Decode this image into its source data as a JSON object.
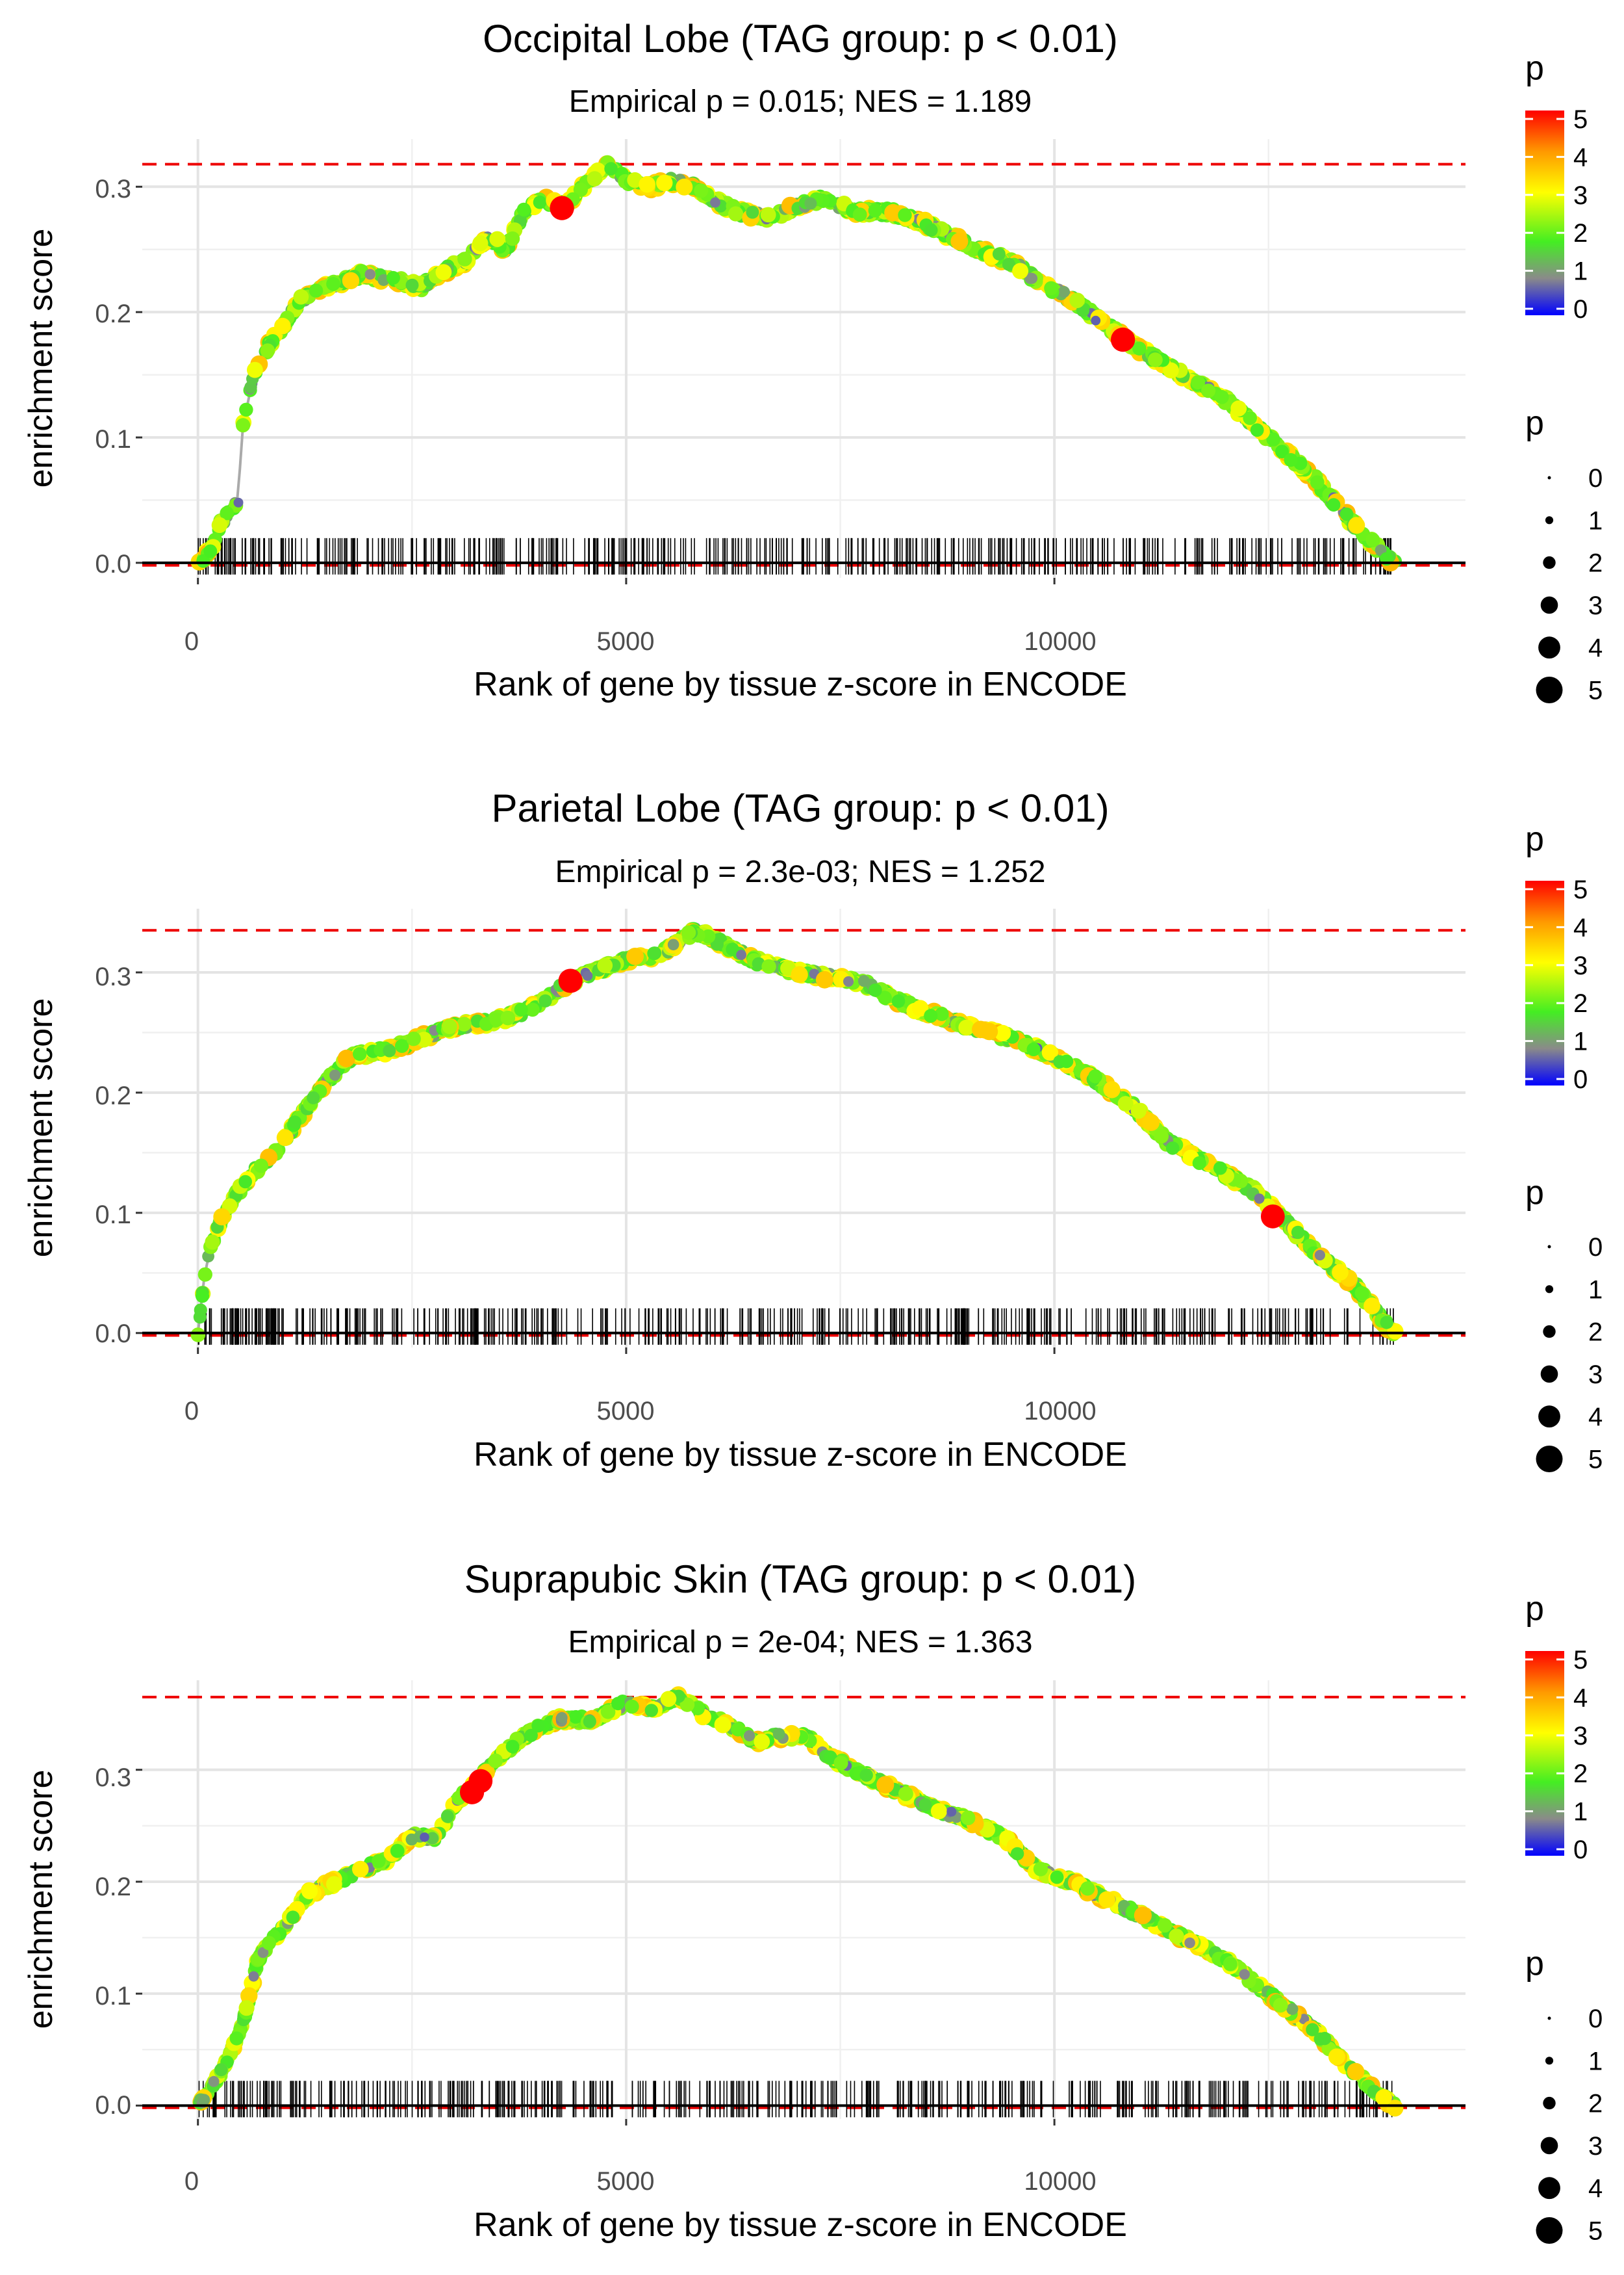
{
  "legend": {
    "color_title": "p",
    "color_ticks": [
      "0",
      "1",
      "2",
      "3",
      "4",
      "5"
    ],
    "size_title": "p",
    "size_labels": [
      "0",
      "1",
      "2",
      "3",
      "4",
      "5"
    ],
    "colors": {
      "low": "#0000ff",
      "mid_gray": "#8a8a8a",
      "green": "#44ee22",
      "yellow": "#ffff00",
      "orange": "#ff9900",
      "high": "#ff0000",
      "dashed": "#ee0000",
      "line": "#aaaaaa"
    }
  },
  "chart_data": [
    {
      "type": "line",
      "title": "Occipital Lobe (TAG group: p < 0.01)",
      "subtitle": "Empirical p = 0.015; NES = 1.189",
      "xlabel": "Rank of gene by tissue z-score in ENCODE",
      "ylabel": "enrichment score",
      "xlim": [
        -650,
        14800
      ],
      "ylim": [
        -0.012,
        0.338
      ],
      "xticks": [
        0,
        5000,
        10000
      ],
      "xtick_labels": [
        "0",
        "5000",
        "10000"
      ],
      "yticks": [
        0.0,
        0.1,
        0.2,
        0.3
      ],
      "ytick_labels": [
        "0.0",
        "0.1",
        "0.2",
        "0.3"
      ],
      "max_es": 0.318,
      "min_es": -0.002,
      "n_genes": 13980,
      "curve": [
        [
          0,
          0
        ],
        [
          150,
          0.01
        ],
        [
          250,
          0.03
        ],
        [
          380,
          0.04
        ],
        [
          480,
          0.05
        ],
        [
          500,
          0.1
        ],
        [
          560,
          0.12
        ],
        [
          650,
          0.15
        ],
        [
          800,
          0.17
        ],
        [
          1000,
          0.19
        ],
        [
          1200,
          0.21
        ],
        [
          1500,
          0.22
        ],
        [
          1900,
          0.23
        ],
        [
          2300,
          0.225
        ],
        [
          2600,
          0.22
        ],
        [
          2800,
          0.23
        ],
        [
          3100,
          0.24
        ],
        [
          3400,
          0.26
        ],
        [
          3600,
          0.25
        ],
        [
          3800,
          0.28
        ],
        [
          4000,
          0.29
        ],
        [
          4300,
          0.285
        ],
        [
          4500,
          0.3
        ],
        [
          4800,
          0.318
        ],
        [
          5000,
          0.305
        ],
        [
          5300,
          0.3
        ],
        [
          5500,
          0.305
        ],
        [
          5800,
          0.3
        ],
        [
          6000,
          0.29
        ],
        [
          6300,
          0.28
        ],
        [
          6700,
          0.275
        ],
        [
          7000,
          0.285
        ],
        [
          7300,
          0.29
        ],
        [
          7700,
          0.28
        ],
        [
          8100,
          0.28
        ],
        [
          8500,
          0.27
        ],
        [
          8800,
          0.26
        ],
        [
          9100,
          0.25
        ],
        [
          9500,
          0.24
        ],
        [
          9800,
          0.225
        ],
        [
          10200,
          0.21
        ],
        [
          10600,
          0.19
        ],
        [
          11000,
          0.17
        ],
        [
          11500,
          0.15
        ],
        [
          12000,
          0.13
        ],
        [
          12500,
          0.1
        ],
        [
          13000,
          0.07
        ],
        [
          13500,
          0.03
        ],
        [
          13950,
          0.0
        ]
      ],
      "highlights": [
        [
          4250,
          0.283,
          5.2
        ],
        [
          10800,
          0.178,
          5.2
        ]
      ],
      "rug_seed": 11
    },
    {
      "type": "line",
      "title": "Parietal Lobe (TAG group: p < 0.01)",
      "subtitle": "Empirical p = 2.3e-03; NES = 1.252",
      "xlabel": "Rank of gene by tissue z-score in ENCODE",
      "ylabel": "enrichment score",
      "xlim": [
        -650,
        14800
      ],
      "ylim": [
        -0.012,
        0.353
      ],
      "xticks": [
        0,
        5000,
        10000
      ],
      "xtick_labels": [
        "0",
        "5000",
        "10000"
      ],
      "yticks": [
        0.0,
        0.1,
        0.2,
        0.3
      ],
      "ytick_labels": [
        "0.0",
        "0.1",
        "0.2",
        "0.3"
      ],
      "max_es": 0.335,
      "min_es": -0.002,
      "n_genes": 13980,
      "curve": [
        [
          0,
          0
        ],
        [
          80,
          0.05
        ],
        [
          150,
          0.07
        ],
        [
          250,
          0.09
        ],
        [
          400,
          0.11
        ],
        [
          600,
          0.13
        ],
        [
          900,
          0.15
        ],
        [
          1100,
          0.17
        ],
        [
          1300,
          0.19
        ],
        [
          1500,
          0.21
        ],
        [
          1800,
          0.23
        ],
        [
          2200,
          0.235
        ],
        [
          2600,
          0.245
        ],
        [
          3000,
          0.255
        ],
        [
          3500,
          0.26
        ],
        [
          3900,
          0.27
        ],
        [
          4300,
          0.29
        ],
        [
          4600,
          0.3
        ],
        [
          5000,
          0.31
        ],
        [
          5400,
          0.315
        ],
        [
          5800,
          0.335
        ],
        [
          6100,
          0.325
        ],
        [
          6500,
          0.31
        ],
        [
          7000,
          0.3
        ],
        [
          7500,
          0.295
        ],
        [
          7800,
          0.29
        ],
        [
          8200,
          0.275
        ],
        [
          8600,
          0.265
        ],
        [
          9000,
          0.255
        ],
        [
          9500,
          0.245
        ],
        [
          10000,
          0.23
        ],
        [
          10500,
          0.21
        ],
        [
          10900,
          0.19
        ],
        [
          11300,
          0.16
        ],
        [
          11800,
          0.14
        ],
        [
          12300,
          0.12
        ],
        [
          12600,
          0.1
        ],
        [
          13000,
          0.07
        ],
        [
          13500,
          0.04
        ],
        [
          13950,
          0.0
        ]
      ],
      "highlights": [
        [
          4350,
          0.293,
          5.2
        ],
        [
          12550,
          0.097,
          5.0
        ]
      ],
      "rug_seed": 23
    },
    {
      "type": "line",
      "title": "Suprapubic Skin (TAG group: p < 0.01)",
      "subtitle": "Empirical p = 2e-04; NES = 1.363",
      "xlabel": "Rank of gene by tissue z-score in ENCODE",
      "ylabel": "enrichment score",
      "xlim": [
        -650,
        14800
      ],
      "ylim": [
        -0.012,
        0.38
      ],
      "xticks": [
        0,
        5000,
        10000
      ],
      "xtick_labels": [
        "0",
        "5000",
        "10000"
      ],
      "yticks": [
        0.0,
        0.1,
        0.2,
        0.3
      ],
      "ytick_labels": [
        "0.0",
        "0.1",
        "0.2",
        "0.3"
      ],
      "max_es": 0.365,
      "min_es": -0.002,
      "n_genes": 13980,
      "curve": [
        [
          0,
          0
        ],
        [
          200,
          0.02
        ],
        [
          400,
          0.05
        ],
        [
          550,
          0.08
        ],
        [
          700,
          0.13
        ],
        [
          900,
          0.15
        ],
        [
          1100,
          0.17
        ],
        [
          1300,
          0.19
        ],
        [
          1600,
          0.2
        ],
        [
          1900,
          0.21
        ],
        [
          2200,
          0.22
        ],
        [
          2500,
          0.24
        ],
        [
          2800,
          0.24
        ],
        [
          3000,
          0.27
        ],
        [
          3200,
          0.285
        ],
        [
          3500,
          0.31
        ],
        [
          3800,
          0.33
        ],
        [
          4200,
          0.345
        ],
        [
          4600,
          0.345
        ],
        [
          5000,
          0.36
        ],
        [
          5300,
          0.355
        ],
        [
          5600,
          0.365
        ],
        [
          5900,
          0.35
        ],
        [
          6200,
          0.34
        ],
        [
          6500,
          0.325
        ],
        [
          6800,
          0.33
        ],
        [
          7100,
          0.33
        ],
        [
          7400,
          0.31
        ],
        [
          7800,
          0.295
        ],
        [
          8200,
          0.28
        ],
        [
          8600,
          0.265
        ],
        [
          9000,
          0.255
        ],
        [
          9400,
          0.24
        ],
        [
          9800,
          0.21
        ],
        [
          10200,
          0.2
        ],
        [
          10600,
          0.185
        ],
        [
          11000,
          0.17
        ],
        [
          11500,
          0.15
        ],
        [
          12000,
          0.13
        ],
        [
          12500,
          0.1
        ],
        [
          13000,
          0.07
        ],
        [
          13500,
          0.03
        ],
        [
          13950,
          0.0
        ]
      ],
      "highlights": [
        [
          3200,
          0.28,
          5.2
        ],
        [
          3300,
          0.29,
          5.0
        ]
      ],
      "rug_seed": 37
    }
  ]
}
